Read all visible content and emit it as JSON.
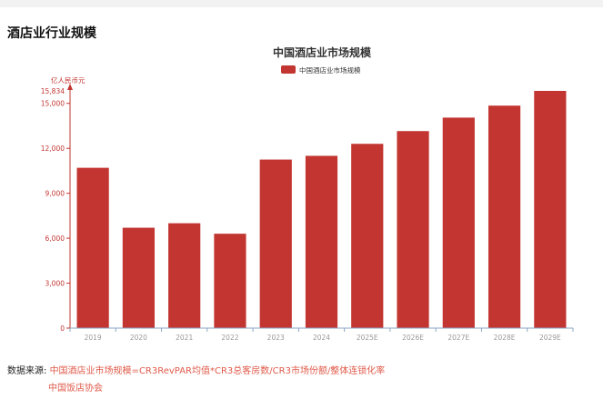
{
  "page": {
    "section_title": "酒店业行业规模"
  },
  "chart_data": {
    "type": "bar",
    "title": "中国酒店业市场规模",
    "ylabel": "亿人民币元",
    "categories": [
      "2019",
      "2020",
      "2021",
      "2022",
      "2023",
      "2024",
      "2025E",
      "2026E",
      "2027E",
      "2028E",
      "2029E"
    ],
    "series": [
      {
        "name": "中国酒店业市场规模",
        "values": [
          10700,
          6700,
          7000,
          6300,
          11250,
          11500,
          12300,
          13150,
          14050,
          14850,
          15834
        ]
      }
    ],
    "ylim": [
      0,
      15834
    ],
    "yticks": [
      0,
      3000,
      6000,
      9000,
      12000,
      15000
    ],
    "ytick_labels": [
      "0",
      "3,000",
      "6,000",
      "9,000",
      "12,000",
      "15,000"
    ],
    "ymax_label": "15,834",
    "legend_position": "top-center",
    "grid": false,
    "colors": {
      "bar": "#c23531",
      "axis": "#c23531",
      "tick_label": "#c23531",
      "xtick_label": "#999999"
    }
  },
  "footer": {
    "label": "数据来源:",
    "source_line1": "中国酒店业市场规模=CR3RevPAR均值*CR3总客房数/CR3市场份额/整体连锁化率",
    "source_line2": "中国饭店协会"
  }
}
